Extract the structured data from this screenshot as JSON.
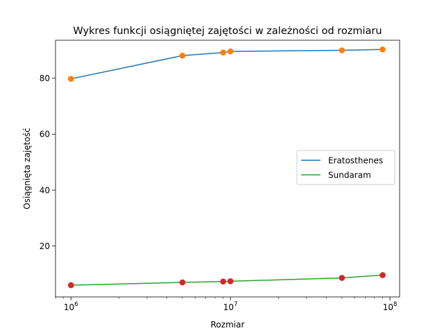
{
  "chart_data": {
    "type": "line",
    "title": "Wykres funkcji osiągniętej zajętości w zależności od rozmiaru",
    "xlabel": "Rozmiar",
    "ylabel": "Osiągnięta zajętość",
    "xscale": "log",
    "xlim": [
      800000,
      115000000
    ],
    "ylim": [
      1.8,
      93.6
    ],
    "x_ticks": [
      {
        "value": 1000000,
        "base": "10",
        "exp": "6"
      },
      {
        "value": 10000000,
        "base": "10",
        "exp": "7"
      },
      {
        "value": 100000000,
        "base": "10",
        "exp": "8"
      }
    ],
    "y_ticks": [
      20,
      40,
      60,
      80
    ],
    "grid": false,
    "legend_position": "center-right",
    "series": [
      {
        "name": "Eratosthenes",
        "line_color": "#1f77b4",
        "marker_color": "#ff7f0e",
        "x": [
          1000000,
          5000000,
          9000000,
          10000000,
          50000000,
          90000000
        ],
        "y": [
          79.8,
          88.1,
          89.2,
          89.6,
          90.0,
          90.3
        ]
      },
      {
        "name": "Sundaram",
        "line_color": "#2ca02c",
        "marker_color": "#d62728",
        "x": [
          1000000,
          5000000,
          9000000,
          10000000,
          50000000,
          90000000
        ],
        "y": [
          6.0,
          7.0,
          7.3,
          7.4,
          8.6,
          9.6
        ]
      }
    ]
  }
}
